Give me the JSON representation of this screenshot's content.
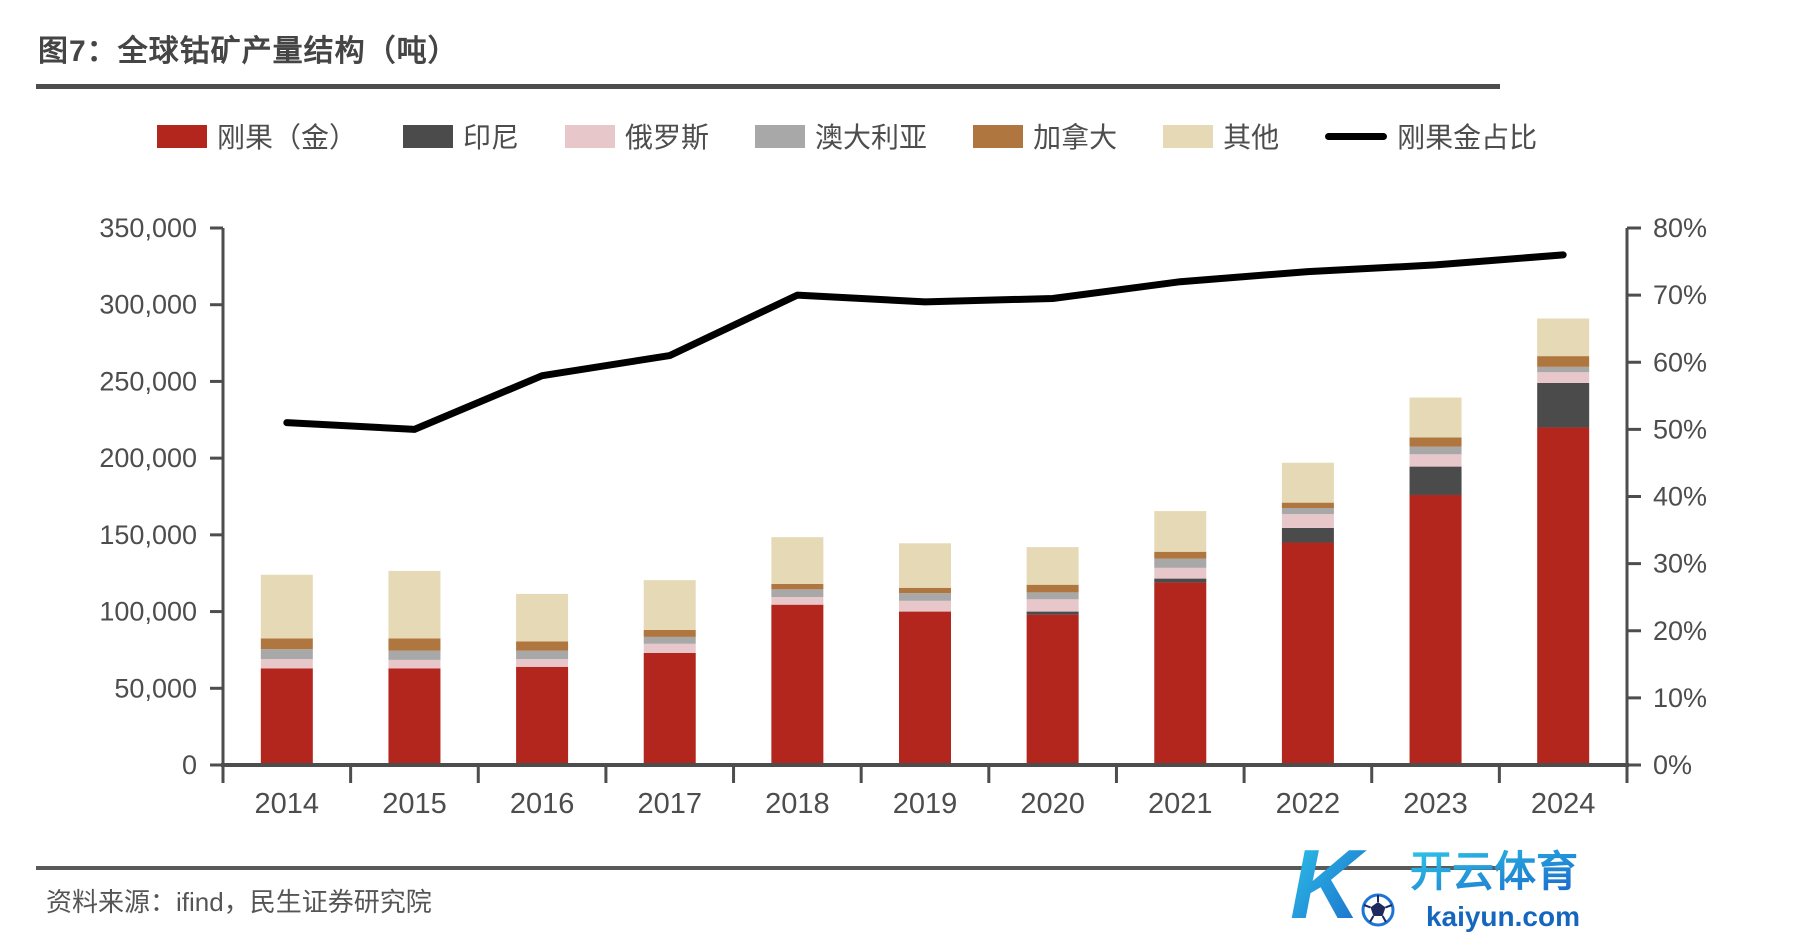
{
  "figure": {
    "title": "图7：全球钴矿产量结构（吨）"
  },
  "footer": {
    "source": "资料来源：ifind，民生证券研究院"
  },
  "watermark": {
    "logo_letter": "K",
    "brand": "开云体育",
    "domain": "kaiyun.com",
    "brand_color_start": "#2EC6E9",
    "brand_color_end": "#1A66C9",
    "domain_color": "#1566BE"
  },
  "style": {
    "axis_color": "#4d4d4d",
    "text_color": "#4d4d4d",
    "background": "#ffffff"
  },
  "chart_data": {
    "type": "bar",
    "subtype": "stacked-bars-with-line-overlay",
    "title": "全球钴矿产量结构（吨）",
    "legend_position": "top",
    "grid": false,
    "categories": [
      "2014",
      "2015",
      "2016",
      "2017",
      "2018",
      "2019",
      "2020",
      "2021",
      "2022",
      "2023",
      "2024"
    ],
    "series": [
      {
        "name": "刚果（金）",
        "color": "#B2261E",
        "values": [
          63000,
          63000,
          64000,
          73000,
          104500,
          100000,
          98000,
          119000,
          145000,
          176000,
          220000
        ]
      },
      {
        "name": "印尼",
        "color": "#4B4B4B",
        "values": [
          0,
          0,
          0,
          0,
          0,
          0,
          2000,
          2500,
          9500,
          18500,
          29000
        ]
      },
      {
        "name": "俄罗斯",
        "color": "#E8C7CB",
        "values": [
          6000,
          5500,
          5000,
          6000,
          5000,
          7000,
          8000,
          7000,
          9000,
          8000,
          7000
        ]
      },
      {
        "name": "澳大利亚",
        "color": "#A8A8A8",
        "values": [
          6500,
          6000,
          5500,
          4500,
          5000,
          5000,
          4500,
          6000,
          4000,
          5000,
          3500
        ]
      },
      {
        "name": "加拿大",
        "color": "#B0763F",
        "values": [
          7000,
          8000,
          6000,
          4500,
          3500,
          3500,
          5000,
          4500,
          3500,
          6000,
          7000
        ]
      },
      {
        "name": "其他",
        "color": "#E6D9B6",
        "values": [
          41500,
          44000,
          31000,
          32500,
          30500,
          29000,
          24500,
          26500,
          26000,
          26000,
          24500
        ]
      }
    ],
    "line": {
      "name": "刚果金占比",
      "color": "#000000",
      "axis": "right",
      "values": [
        51,
        50,
        58,
        61,
        70,
        69,
        69.5,
        72,
        73.5,
        74.5,
        76
      ]
    },
    "left_axis": {
      "min": 0,
      "max": 350000,
      "step": 50000,
      "tick_labels": [
        "0",
        "50,000",
        "100,000",
        "150,000",
        "200,000",
        "250,000",
        "300,000",
        "350,000"
      ]
    },
    "right_axis": {
      "min": 0,
      "max": 80,
      "step": 10,
      "tick_labels": [
        "0%",
        "10%",
        "20%",
        "30%",
        "40%",
        "50%",
        "60%",
        "70%",
        "80%"
      ]
    }
  }
}
